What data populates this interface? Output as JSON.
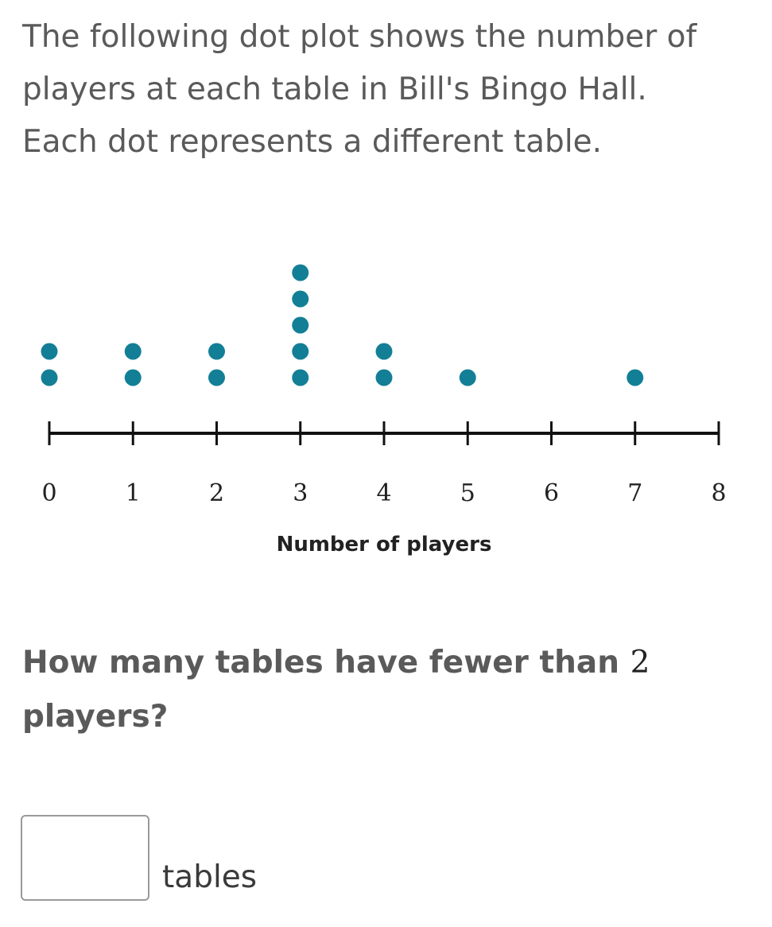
{
  "intro": {
    "line1": "The following dot plot shows the number of",
    "line2": "players at each table in Bill's Bingo Hall.",
    "line3": "Each dot represents a different table."
  },
  "question": {
    "before": "How many tables have fewer than",
    "number": "2",
    "after": "players?"
  },
  "answer": {
    "value": "",
    "unit": "tables"
  },
  "colors": {
    "dot": "#137f96",
    "axis": "#111111"
  },
  "chart_data": {
    "type": "dot",
    "xlabel": "Number of players",
    "ylabel": "",
    "xlim": [
      0,
      8
    ],
    "ticks": [
      0,
      1,
      2,
      3,
      4,
      5,
      6,
      7,
      8
    ],
    "counts": [
      {
        "x": 0,
        "count": 2
      },
      {
        "x": 1,
        "count": 2
      },
      {
        "x": 2,
        "count": 2
      },
      {
        "x": 3,
        "count": 5
      },
      {
        "x": 4,
        "count": 2
      },
      {
        "x": 5,
        "count": 1
      },
      {
        "x": 6,
        "count": 0
      },
      {
        "x": 7,
        "count": 1
      },
      {
        "x": 8,
        "count": 0
      }
    ],
    "grid": false
  }
}
